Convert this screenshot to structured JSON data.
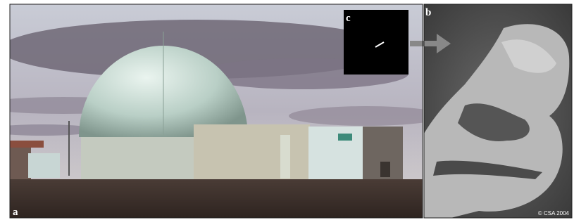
{
  "labels": [
    "a",
    "b",
    "c"
  ],
  "credit": "© CSA 2004"
}
